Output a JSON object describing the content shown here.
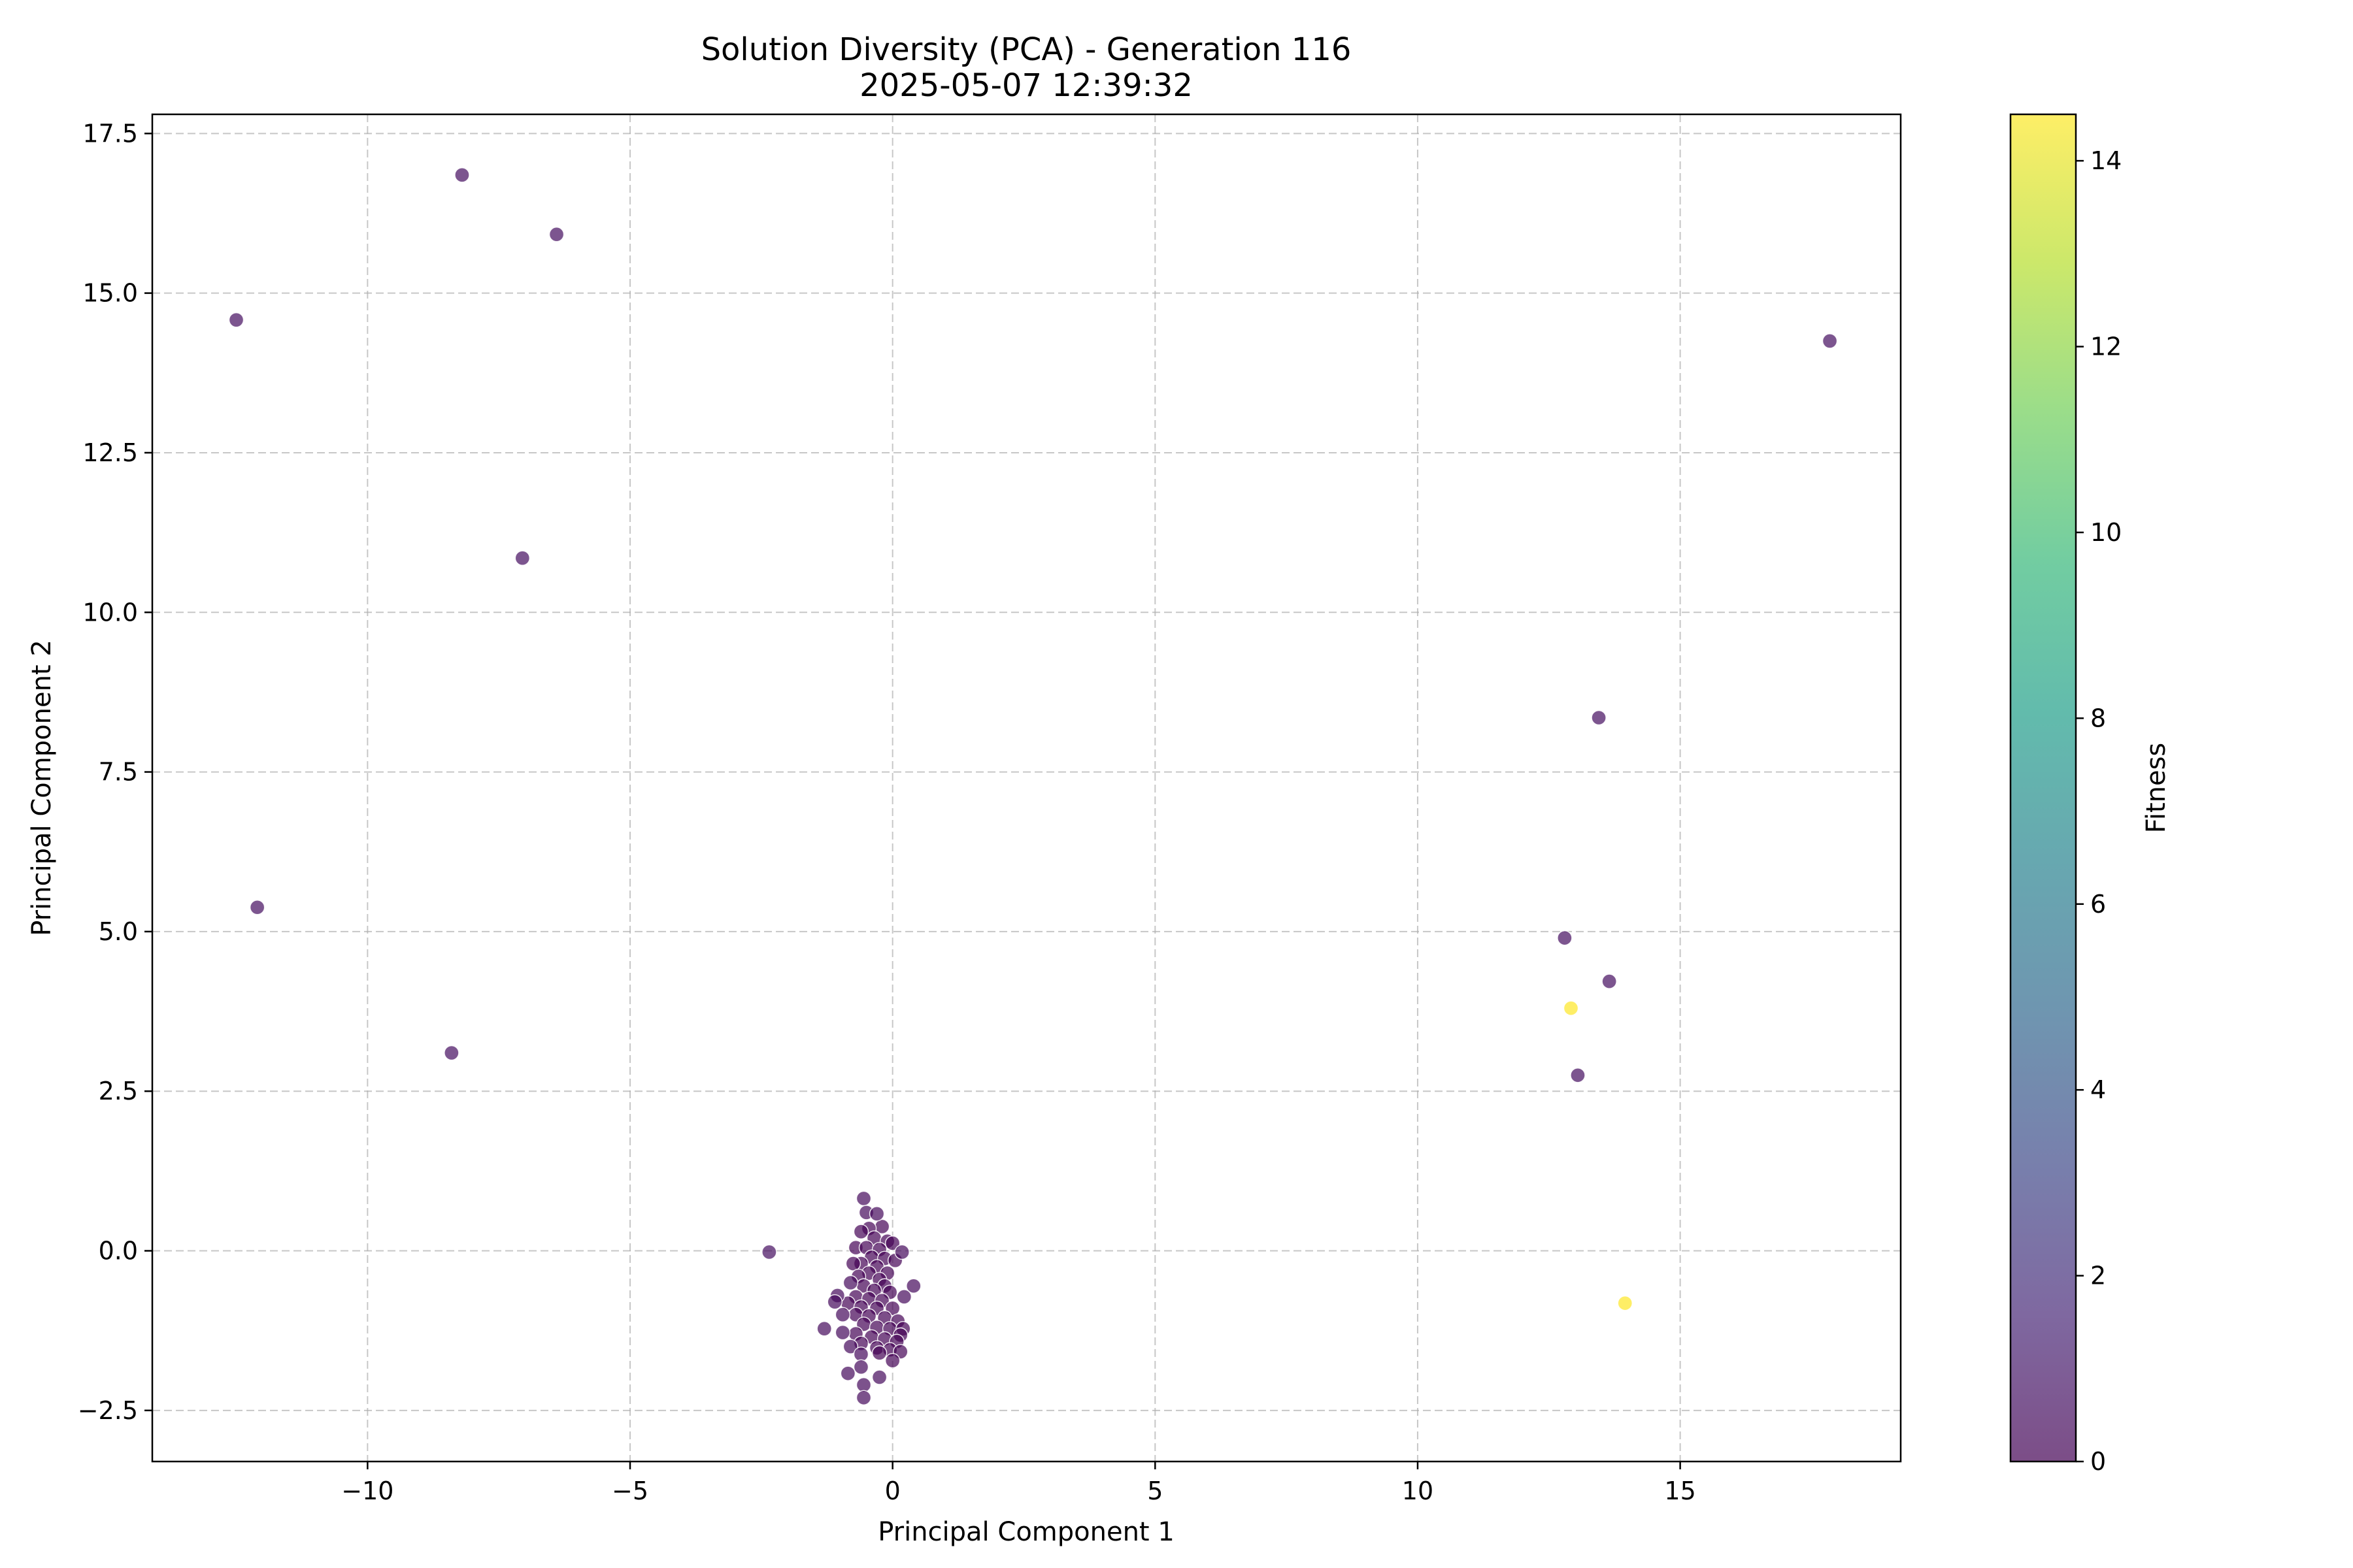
{
  "chart_data": {
    "type": "scatter",
    "title": "Solution Diversity (PCA) - Generation 116",
    "subtitle": "2025-05-07 12:39:32",
    "xlabel": "Principal Component 1",
    "ylabel": "Principal Component 2",
    "xlim": [
      -14.1,
      19.2
    ],
    "ylim": [
      -3.3,
      17.8
    ],
    "xticks": [
      -10,
      -5,
      0,
      5,
      10,
      15
    ],
    "xtick_labels": [
      "−10",
      "−5",
      "0",
      "5",
      "10",
      "15"
    ],
    "yticks": [
      -2.5,
      0.0,
      2.5,
      5.0,
      7.5,
      10.0,
      12.5,
      15.0,
      17.5
    ],
    "ytick_labels": [
      "−2.5",
      "0.0",
      "2.5",
      "5.0",
      "7.5",
      "10.0",
      "12.5",
      "15.0",
      "17.5"
    ],
    "grid": true,
    "grid_style": "dashed",
    "colormap": "viridis",
    "point_alpha": 0.7,
    "point_edge_color": "#ffffff",
    "colorbar": {
      "label": "Fitness",
      "range": [
        0,
        14.5
      ],
      "ticks": [
        0,
        2,
        4,
        6,
        8,
        10,
        12,
        14
      ],
      "tick_labels": [
        "0",
        "2",
        "4",
        "6",
        "8",
        "10",
        "12",
        "14"
      ],
      "colors": [
        "#440154",
        "#482878",
        "#3e4989",
        "#31688e",
        "#26828e",
        "#1f9e89",
        "#35b779",
        "#6ece58",
        "#b5de2b",
        "#fde725"
      ]
    },
    "points": [
      {
        "x": -8.2,
        "y": 16.85,
        "fitness": 0.5
      },
      {
        "x": -6.4,
        "y": 15.92,
        "fitness": 0.5
      },
      {
        "x": -12.5,
        "y": 14.58,
        "fitness": 0.5
      },
      {
        "x": 17.85,
        "y": 14.25,
        "fitness": 0.5
      },
      {
        "x": -7.05,
        "y": 10.85,
        "fitness": 0.5
      },
      {
        "x": 13.45,
        "y": 8.35,
        "fitness": 0.5
      },
      {
        "x": -12.1,
        "y": 5.38,
        "fitness": 0.5
      },
      {
        "x": 12.8,
        "y": 4.9,
        "fitness": 0.5
      },
      {
        "x": 13.65,
        "y": 4.22,
        "fitness": 0.5
      },
      {
        "x": 12.92,
        "y": 3.8,
        "fitness": 14.5
      },
      {
        "x": -8.4,
        "y": 3.1,
        "fitness": 0.5
      },
      {
        "x": 13.05,
        "y": 2.75,
        "fitness": 0.5
      },
      {
        "x": 13.95,
        "y": -0.82,
        "fitness": 14.5
      },
      {
        "x": -2.35,
        "y": -0.02,
        "fitness": 0.5
      },
      {
        "x": -0.55,
        "y": 0.82,
        "fitness": 0.3
      },
      {
        "x": -0.5,
        "y": 0.6,
        "fitness": 0.3
      },
      {
        "x": -0.3,
        "y": 0.58,
        "fitness": 0.3
      },
      {
        "x": -0.2,
        "y": 0.38,
        "fitness": 0.1
      },
      {
        "x": -0.45,
        "y": 0.35,
        "fitness": 0.1
      },
      {
        "x": -0.6,
        "y": 0.3,
        "fitness": 0.1
      },
      {
        "x": -0.35,
        "y": 0.2,
        "fitness": 0.1
      },
      {
        "x": -0.1,
        "y": 0.15,
        "fitness": 0.1
      },
      {
        "x": 0.0,
        "y": 0.12,
        "fitness": 0.1
      },
      {
        "x": -0.7,
        "y": 0.05,
        "fitness": 0.1
      },
      {
        "x": -0.5,
        "y": 0.05,
        "fitness": 0.1
      },
      {
        "x": -0.25,
        "y": 0.02,
        "fitness": 0.1
      },
      {
        "x": 0.18,
        "y": -0.02,
        "fitness": 0.3
      },
      {
        "x": -0.4,
        "y": -0.1,
        "fitness": 0.1
      },
      {
        "x": -0.15,
        "y": -0.12,
        "fitness": 0.1
      },
      {
        "x": 0.05,
        "y": -0.15,
        "fitness": 0.1
      },
      {
        "x": -0.6,
        "y": -0.2,
        "fitness": 0.1
      },
      {
        "x": -0.75,
        "y": -0.2,
        "fitness": 0.1
      },
      {
        "x": -0.3,
        "y": -0.25,
        "fitness": 0.1
      },
      {
        "x": -0.45,
        "y": -0.35,
        "fitness": 0.1
      },
      {
        "x": -0.1,
        "y": -0.35,
        "fitness": 0.1
      },
      {
        "x": -0.65,
        "y": -0.4,
        "fitness": 0.1
      },
      {
        "x": -0.25,
        "y": -0.45,
        "fitness": 0.1
      },
      {
        "x": -0.8,
        "y": -0.5,
        "fitness": 0.3
      },
      {
        "x": -0.55,
        "y": -0.55,
        "fitness": 0.1
      },
      {
        "x": -0.15,
        "y": -0.55,
        "fitness": 0.1
      },
      {
        "x": 0.4,
        "y": -0.55,
        "fitness": 0.3
      },
      {
        "x": -0.35,
        "y": -0.62,
        "fitness": 0.1
      },
      {
        "x": -0.05,
        "y": -0.65,
        "fitness": 0.1
      },
      {
        "x": -1.05,
        "y": -0.7,
        "fitness": 0.3
      },
      {
        "x": -0.7,
        "y": -0.72,
        "fitness": 0.1
      },
      {
        "x": 0.22,
        "y": -0.72,
        "fitness": 0.3
      },
      {
        "x": -0.45,
        "y": -0.75,
        "fitness": 0.1
      },
      {
        "x": -0.2,
        "y": -0.78,
        "fitness": 0.1
      },
      {
        "x": -1.1,
        "y": -0.8,
        "fitness": 0.3
      },
      {
        "x": -0.85,
        "y": -0.82,
        "fitness": 0.1
      },
      {
        "x": -0.6,
        "y": -0.88,
        "fitness": 0.1
      },
      {
        "x": -0.3,
        "y": -0.9,
        "fitness": 0.1
      },
      {
        "x": 0.0,
        "y": -0.9,
        "fitness": 0.1
      },
      {
        "x": -0.95,
        "y": -1.0,
        "fitness": 0.3
      },
      {
        "x": -0.7,
        "y": -1.0,
        "fitness": 0.1
      },
      {
        "x": -0.45,
        "y": -1.02,
        "fitness": 0.1
      },
      {
        "x": -0.15,
        "y": -1.05,
        "fitness": 0.1
      },
      {
        "x": 0.1,
        "y": -1.1,
        "fitness": 0.1
      },
      {
        "x": -0.55,
        "y": -1.15,
        "fitness": 0.1
      },
      {
        "x": -0.3,
        "y": -1.2,
        "fitness": 0.1
      },
      {
        "x": -1.3,
        "y": -1.22,
        "fitness": 0.3
      },
      {
        "x": -0.05,
        "y": -1.22,
        "fitness": 0.1
      },
      {
        "x": 0.2,
        "y": -1.22,
        "fitness": 0.1
      },
      {
        "x": -0.95,
        "y": -1.28,
        "fitness": 0.3
      },
      {
        "x": -0.7,
        "y": -1.3,
        "fitness": 0.1
      },
      {
        "x": 0.15,
        "y": -1.32,
        "fitness": 0.1
      },
      {
        "x": -0.4,
        "y": -1.35,
        "fitness": 0.1
      },
      {
        "x": -0.15,
        "y": -1.38,
        "fitness": 0.1
      },
      {
        "x": 0.08,
        "y": -1.42,
        "fitness": 0.1
      },
      {
        "x": -0.6,
        "y": -1.45,
        "fitness": 0.1
      },
      {
        "x": -0.8,
        "y": -1.5,
        "fitness": 0.3
      },
      {
        "x": -0.3,
        "y": -1.52,
        "fitness": 0.1
      },
      {
        "x": -0.05,
        "y": -1.55,
        "fitness": 0.1
      },
      {
        "x": 0.15,
        "y": -1.58,
        "fitness": 0.1
      },
      {
        "x": -0.6,
        "y": -1.62,
        "fitness": 0.3
      },
      {
        "x": -0.25,
        "y": -1.6,
        "fitness": 0.1
      },
      {
        "x": 0.0,
        "y": -1.72,
        "fitness": 0.1
      },
      {
        "x": -0.6,
        "y": -1.82,
        "fitness": 0.3
      },
      {
        "x": -0.85,
        "y": -1.92,
        "fitness": 0.3
      },
      {
        "x": -0.25,
        "y": -1.98,
        "fitness": 0.3
      },
      {
        "x": -0.55,
        "y": -2.1,
        "fitness": 0.3
      },
      {
        "x": -0.55,
        "y": -2.3,
        "fitness": 0.3
      }
    ]
  }
}
